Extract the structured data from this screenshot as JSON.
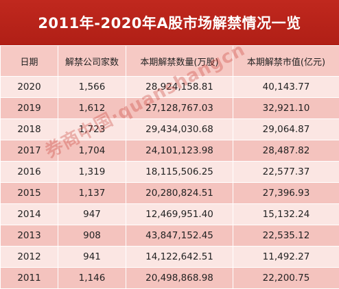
{
  "title": "2011年-2020年A股市场解禁情况一览",
  "table": {
    "headers": [
      "日期",
      "解禁公司家数",
      "本期解禁数量(万股)",
      "本期解禁市值(亿元)"
    ],
    "rows": [
      [
        "2020",
        "1,566",
        "28,924,158.81",
        "40,143.77"
      ],
      [
        "2019",
        "1,612",
        "27,128,767.03",
        "32,921.10"
      ],
      [
        "2018",
        "1,723",
        "29,434,030.68",
        "29,064.87"
      ],
      [
        "2017",
        "1,704",
        "24,101,123.98",
        "28,487.82"
      ],
      [
        "2016",
        "1,319",
        "18,115,506.25",
        "22,577.37"
      ],
      [
        "2015",
        "1,137",
        "20,280,824.51",
        "27,396.93"
      ],
      [
        "2014",
        "947",
        "12,469,951.40",
        "15,132.24"
      ],
      [
        "2013",
        "908",
        "43,847,152.45",
        "22,535.12"
      ],
      [
        "2012",
        "941",
        "14,122,642.51",
        "11,492.27"
      ],
      [
        "2011",
        "1,146",
        "20,498,868.98",
        "22,200.75"
      ]
    ]
  },
  "watermark": "券商中国·quanshangcn",
  "colors": {
    "title_bg": "#b8231a",
    "header_bg": "#f6c9c4",
    "row_light": "#fbe6e3",
    "row_dark": "#f4c3be"
  }
}
